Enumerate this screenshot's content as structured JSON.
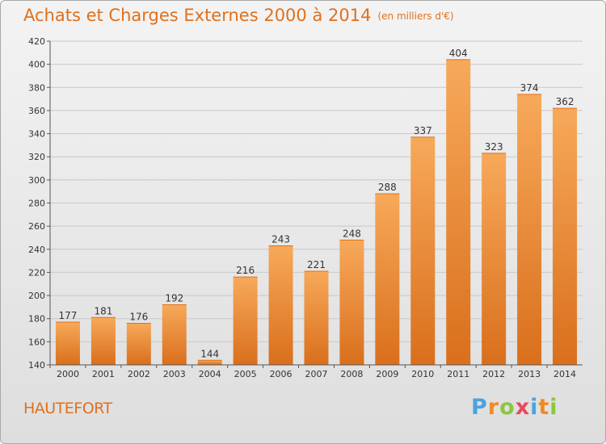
{
  "title": "Achats et Charges Externes 2000 à 2014",
  "unit": "(en milliers d'€)",
  "commune": "HAUTEFORT",
  "logo": {
    "parts": [
      "P",
      "r",
      "o",
      "x",
      "i",
      "t",
      "i"
    ]
  },
  "colors": {
    "bar_top": "#f7a95a",
    "bar_bottom": "#d96f1c",
    "accent": "#e0701b"
  },
  "chart_data": {
    "type": "bar",
    "title": "Achats et Charges Externes 2000 à 2014",
    "xlabel": "",
    "ylabel": "",
    "categories": [
      "2000",
      "2001",
      "2002",
      "2003",
      "2004",
      "2005",
      "2006",
      "2007",
      "2008",
      "2009",
      "2010",
      "2011",
      "2012",
      "2013",
      "2014"
    ],
    "values": [
      177,
      181,
      176,
      192,
      144,
      216,
      243,
      221,
      248,
      288,
      337,
      404,
      323,
      374,
      362
    ],
    "ylim": [
      140,
      420
    ],
    "yticks": [
      140,
      160,
      180,
      200,
      220,
      240,
      260,
      280,
      300,
      320,
      340,
      360,
      380,
      400,
      420
    ],
    "grid": true,
    "legend": "none"
  }
}
